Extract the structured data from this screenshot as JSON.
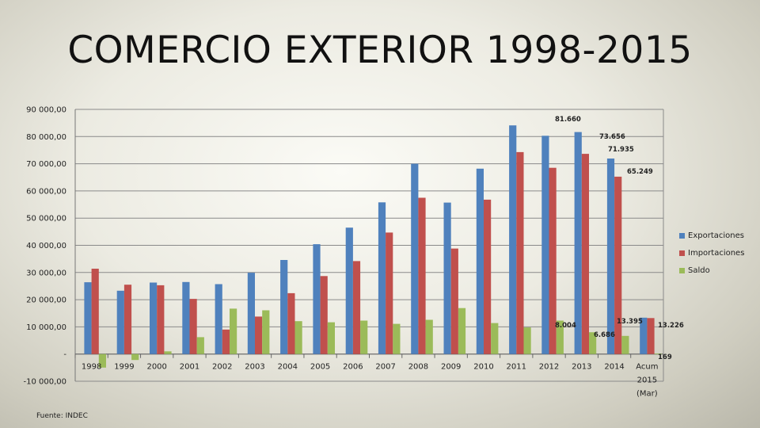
{
  "title": "COMERCIO EXTERIOR  1998-2015",
  "source": "Fuente: INDEC",
  "colors": {
    "exportaciones": "#4f81bd",
    "importaciones": "#c0504d",
    "saldo": "#9bbb59"
  },
  "chart_data": {
    "type": "bar",
    "title": "COMERCIO EXTERIOR  1998-2015",
    "xlabel": "",
    "ylabel": "",
    "ylim": [
      -10000,
      90000
    ],
    "yticks": [
      {
        "value": 90000,
        "label": "90 000,00"
      },
      {
        "value": 80000,
        "label": "80 000,00"
      },
      {
        "value": 70000,
        "label": "70 000,00"
      },
      {
        "value": 60000,
        "label": "60 000,00"
      },
      {
        "value": 50000,
        "label": "50 000,00"
      },
      {
        "value": 40000,
        "label": "40 000,00"
      },
      {
        "value": 30000,
        "label": "30 000,00"
      },
      {
        "value": 20000,
        "label": "20 000,00"
      },
      {
        "value": 10000,
        "label": "10 000,00"
      },
      {
        "value": 0,
        "label": "-"
      },
      {
        "value": -10000,
        "label": "-10 000,00"
      }
    ],
    "categories": [
      "1998",
      "1999",
      "2000",
      "2001",
      "2002",
      "2003",
      "2004",
      "2005",
      "2006",
      "2007",
      "2008",
      "2009",
      "2010",
      "2011",
      "2012",
      "2013",
      "2014",
      "Acum 2015 (Mar)"
    ],
    "grid": true,
    "legend_position": "right",
    "series": [
      {
        "name": "Exportaciones",
        "values": [
          26400,
          23300,
          26300,
          26500,
          25700,
          29900,
          34600,
          40400,
          46500,
          55800,
          70000,
          55700,
          68200,
          84100,
          80300,
          81660,
          71935,
          13395
        ]
      },
      {
        "name": "Importaciones",
        "values": [
          31400,
          25500,
          25300,
          20300,
          9000,
          13800,
          22400,
          28700,
          34200,
          44700,
          57500,
          38800,
          56800,
          74300,
          68500,
          73656,
          65249,
          13226
        ]
      },
      {
        "name": "Saldo",
        "values": [
          -5000,
          -2200,
          1000,
          6200,
          16700,
          16100,
          12100,
          11700,
          12300,
          11100,
          12600,
          16900,
          11400,
          9800,
          12300,
          8004,
          6686,
          169
        ]
      }
    ],
    "data_labels": [
      {
        "series": "Exportaciones",
        "category": "2013",
        "text": "81.660"
      },
      {
        "series": "Importaciones",
        "category": "2013",
        "text": "73.656"
      },
      {
        "series": "Saldo",
        "category": "2013",
        "text": "8.004"
      },
      {
        "series": "Exportaciones",
        "category": "2014",
        "text": "71.935"
      },
      {
        "series": "Importaciones",
        "category": "2014",
        "text": "65.249"
      },
      {
        "series": "Saldo",
        "category": "2014",
        "text": "6.686"
      },
      {
        "series": "Exportaciones",
        "category": "Acum 2015 (Mar)",
        "text": "13.395"
      },
      {
        "series": "Importaciones",
        "category": "Acum 2015 (Mar)",
        "text": "13.226"
      },
      {
        "series": "Saldo",
        "category": "Acum 2015 (Mar)",
        "text": "169"
      }
    ]
  }
}
